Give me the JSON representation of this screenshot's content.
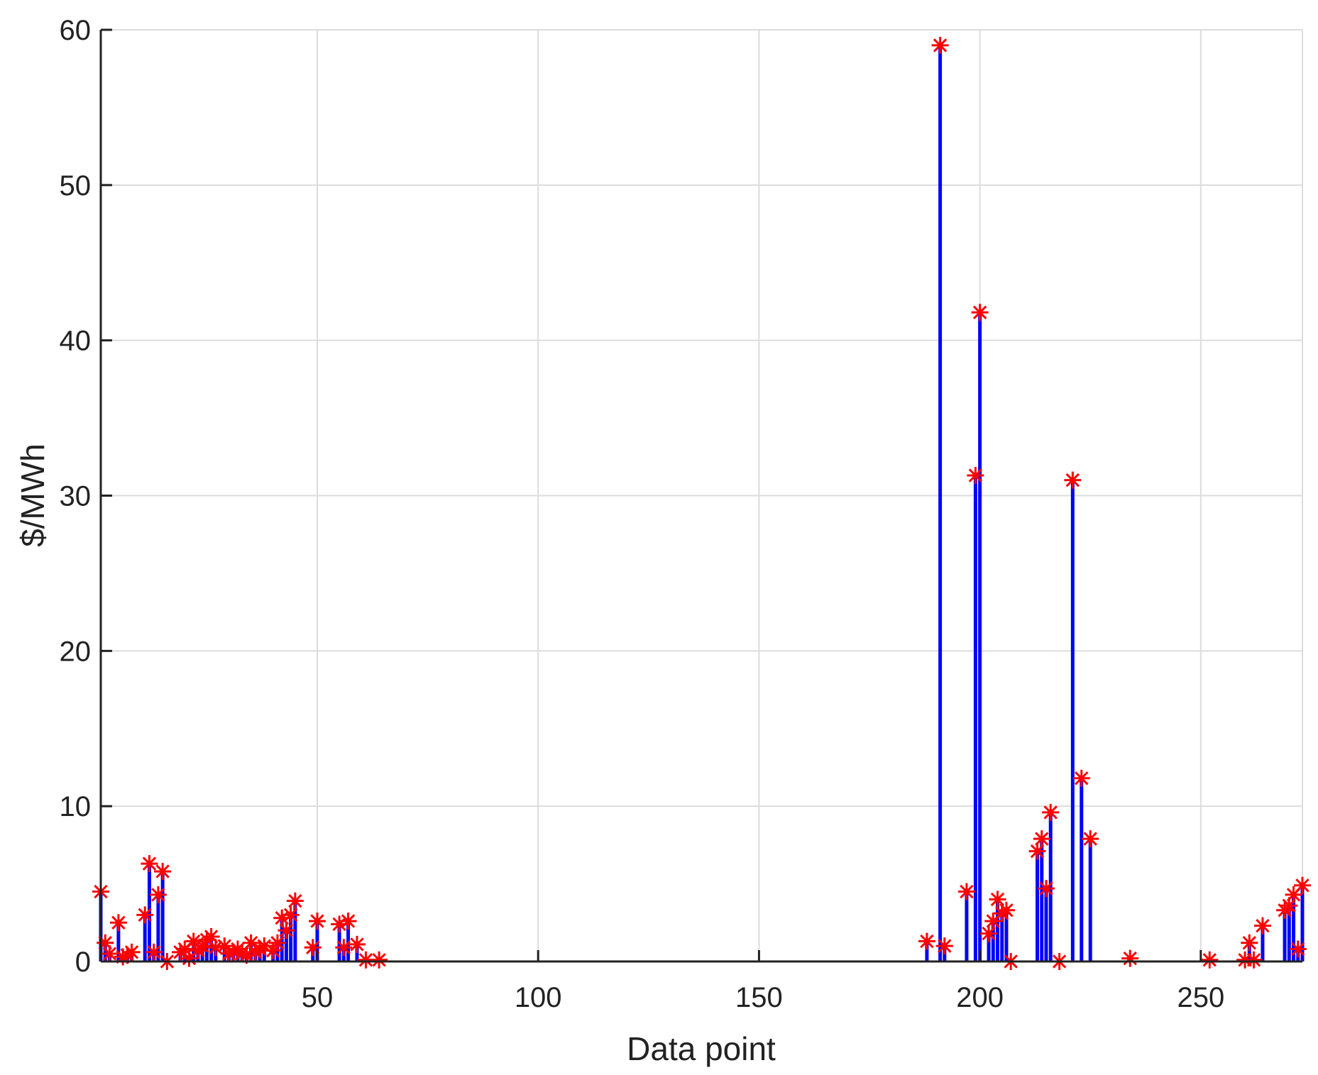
{
  "chart_data": {
    "type": "bar",
    "xlabel": "Data point",
    "ylabel": "$/MWh",
    "xlim": [
      1,
      273
    ],
    "ylim": [
      0,
      60
    ],
    "xticks": [
      50,
      100,
      150,
      200,
      250
    ],
    "yticks": [
      0,
      10,
      20,
      30,
      40,
      50,
      60
    ],
    "grid": true,
    "bar_color": "#0000ff",
    "marker_color": "#ff0000",
    "marker": "asterisk",
    "x": [
      1,
      2,
      3,
      5,
      6,
      7,
      8,
      11,
      12,
      13,
      14,
      15,
      16,
      19,
      20,
      21,
      22,
      23,
      24,
      25,
      26,
      27,
      29,
      30,
      31,
      32,
      33,
      34,
      35,
      36,
      37,
      38,
      40,
      41,
      42,
      43,
      44,
      45,
      49,
      50,
      55,
      56,
      57,
      59,
      61,
      64,
      188,
      191,
      192,
      197,
      199,
      200,
      202,
      203,
      204,
      205,
      206,
      207,
      213,
      214,
      215,
      216,
      218,
      221,
      223,
      225,
      234,
      252,
      260,
      261,
      262,
      264,
      269,
      270,
      271,
      272,
      273
    ],
    "values": [
      4.5,
      1.2,
      0.5,
      2.5,
      0.3,
      0.4,
      0.6,
      3.0,
      6.3,
      0.6,
      4.3,
      5.8,
      0.0,
      0.6,
      0.8,
      0.2,
      1.3,
      0.7,
      1.0,
      1.4,
      1.6,
      0.9,
      1.0,
      0.5,
      0.6,
      0.8,
      0.5,
      0.4,
      1.2,
      0.6,
      0.8,
      1.0,
      0.7,
      1.2,
      2.8,
      2.0,
      3.0,
      3.9,
      0.9,
      2.6,
      2.4,
      0.9,
      2.6,
      1.1,
      0.1,
      0.1,
      1.3,
      59.0,
      1.0,
      4.5,
      31.3,
      41.8,
      1.8,
      2.6,
      4.0,
      3.1,
      3.3,
      0.0,
      7.1,
      7.9,
      4.7,
      9.6,
      0.0,
      31.0,
      11.8,
      7.9,
      0.2,
      0.1,
      0.1,
      1.2,
      0.1,
      2.3,
      3.3,
      3.6,
      4.3,
      0.8,
      4.9
    ]
  }
}
